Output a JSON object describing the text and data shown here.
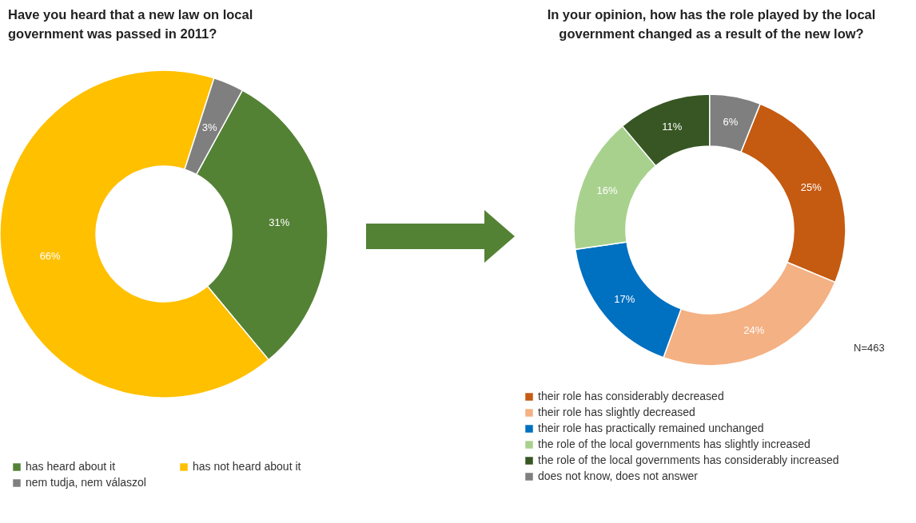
{
  "chart_data": [
    {
      "type": "donut",
      "title": "Have you heard that a new law on local government was passed in 2011?",
      "categories": [
        "has heard about it",
        "has not heard about it",
        "nem tudja, nem válaszol"
      ],
      "values": [
        31,
        66,
        3
      ],
      "value_labels": [
        "31%",
        "66%",
        "3%"
      ],
      "colors": [
        "#548235",
        "#ffc000",
        "#7f7f7f"
      ],
      "legend": "bottom"
    },
    {
      "type": "donut",
      "title": "In your opinion, how has the role played by the local government changed as a result of the new low?",
      "categories": [
        "their role has considerably decreased",
        "their role has slightly decreased",
        "their role has practically remained unchanged",
        "the role of the local governments has slightly increased",
        "the role of the local governments has considerably increased",
        "does not know, does not answer"
      ],
      "values": [
        25,
        24,
        17,
        16,
        11,
        6
      ],
      "value_labels": [
        "25%",
        "24%",
        "17%",
        "16%",
        "11%",
        "6%"
      ],
      "colors": [
        "#c55a11",
        "#f4b183",
        "#0070c0",
        "#a9d18e",
        "#375623",
        "#7f7f7f"
      ],
      "legend": "bottom",
      "annotations": [
        "N=463"
      ]
    }
  ]
}
